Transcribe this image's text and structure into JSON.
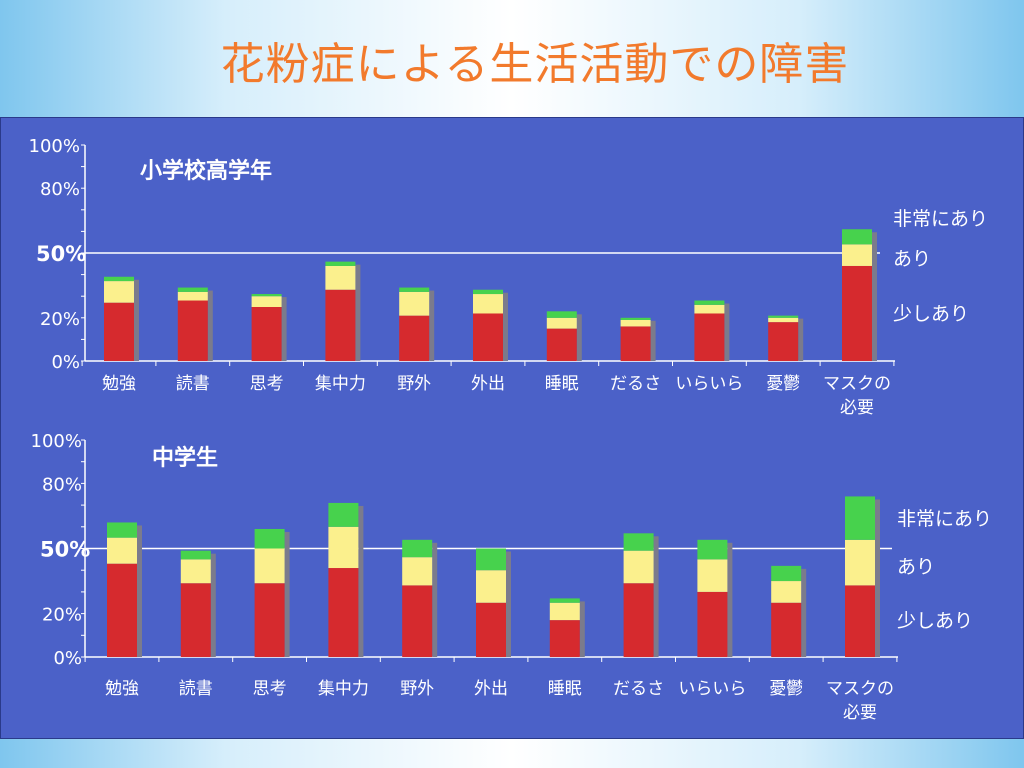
{
  "slide": {
    "title": "花粉症による生活活動での障害"
  },
  "colors": {
    "panel": "#4b61c8",
    "title": "#f27a2c",
    "severe": "#47d24d",
    "moderate": "#fbf08d",
    "mild": "#d62a2e",
    "bar_side": "#7b7b8c",
    "text": "#ffffff"
  },
  "chart_data": [
    {
      "type": "bar",
      "stacked": true,
      "title": "小学校高学年",
      "ylim": [
        0,
        100
      ],
      "yticks_labeled": [
        "0%",
        "20%",
        "50%",
        "80%",
        "100%"
      ],
      "reference_line": 50,
      "categories": [
        "勉強",
        "読書",
        "思考",
        "集中力",
        "野外",
        "外出",
        "睡眠",
        "だるさ",
        "いらいら",
        "憂鬱",
        "マスクの\n必要"
      ],
      "series": [
        {
          "name": "少しあり",
          "color": "#d62a2e",
          "values": [
            27,
            28,
            25,
            33,
            21,
            22,
            15,
            16,
            22,
            18,
            44
          ]
        },
        {
          "name": "あり",
          "color": "#fbf08d",
          "values": [
            10,
            4,
            5,
            11,
            11,
            9,
            5,
            3,
            4,
            2,
            10
          ]
        },
        {
          "name": "非常にあり",
          "color": "#47d24d",
          "values": [
            2,
            2,
            1,
            2,
            2,
            2,
            3,
            1,
            2,
            1,
            7
          ]
        }
      ]
    },
    {
      "type": "bar",
      "stacked": true,
      "title": "中学生",
      "ylim": [
        0,
        100
      ],
      "yticks_labeled": [
        "0%",
        "20%",
        "50%",
        "80%",
        "100%"
      ],
      "reference_line": 50,
      "categories": [
        "勉強",
        "読書",
        "思考",
        "集中力",
        "野外",
        "外出",
        "睡眠",
        "だるさ",
        "いらいら",
        "憂鬱",
        "マスクの\n必要"
      ],
      "series": [
        {
          "name": "少しあり",
          "color": "#d62a2e",
          "values": [
            43,
            34,
            34,
            41,
            33,
            25,
            17,
            34,
            30,
            25,
            33
          ]
        },
        {
          "name": "あり",
          "color": "#fbf08d",
          "values": [
            12,
            11,
            16,
            19,
            13,
            15,
            8,
            15,
            15,
            10,
            21
          ]
        },
        {
          "name": "非常にあり",
          "color": "#47d24d",
          "values": [
            7,
            4,
            9,
            11,
            8,
            10,
            2,
            8,
            9,
            7,
            20
          ]
        }
      ]
    }
  ]
}
